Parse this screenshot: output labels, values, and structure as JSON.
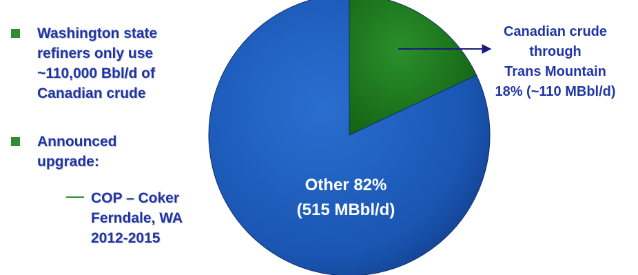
{
  "bullets": [
    {
      "lines": [
        "Washington state",
        "refiners only use",
        "~110,000 Bbl/d of",
        "Canadian crude"
      ]
    },
    {
      "lines": [
        "Announced",
        "upgrade:"
      ],
      "sub": {
        "lines": [
          "COP – Coker",
          "Ferndale, WA",
          "2012-2015"
        ]
      }
    }
  ],
  "colors": {
    "text": "#1f35a6",
    "bullet": "#2f8f2f",
    "other": "#1a56b3",
    "canadian": "#1f7a1f"
  },
  "chart_data": {
    "type": "pie",
    "slices": [
      {
        "label_lines": [
          "Canadian crude",
          "through",
          "Trans Mountain",
          "18% (~110 MBbl/d)"
        ],
        "percent": 18,
        "value": 110,
        "unit": "MBbl/d",
        "color": "#1f7a1f"
      },
      {
        "label_lines": [
          "Other 82%",
          "(515 MBbl/d)"
        ],
        "percent": 82,
        "value": 515,
        "unit": "MBbl/d",
        "color": "#1a56b3"
      }
    ]
  }
}
